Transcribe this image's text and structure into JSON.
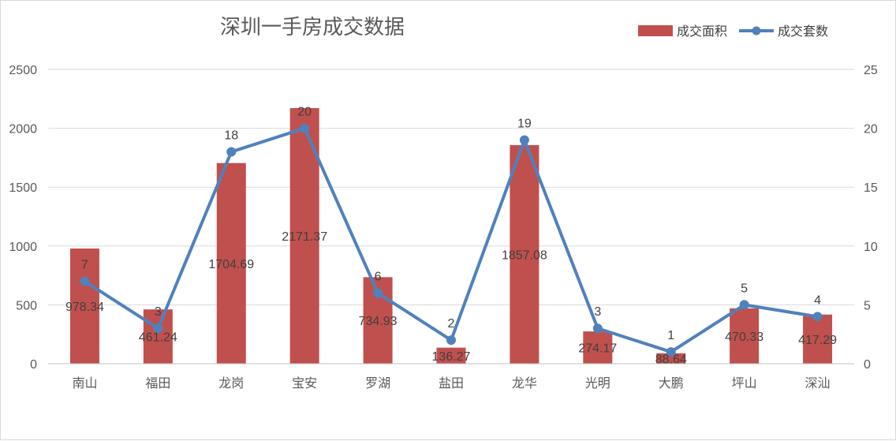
{
  "chart_data": {
    "type": "bar",
    "title": "深圳一手房成交数据",
    "categories": [
      "南山",
      "福田",
      "龙岗",
      "宝安",
      "罗湖",
      "盐田",
      "龙华",
      "光明",
      "大鹏",
      "坪山",
      "深汕"
    ],
    "series": [
      {
        "name": "成交面积",
        "type": "bar",
        "axis": "left",
        "color": "#c0504d",
        "values": [
          978.34,
          461.24,
          1704.69,
          2171.37,
          734.93,
          136.27,
          1857.08,
          274.17,
          88.64,
          470.33,
          417.29
        ]
      },
      {
        "name": "成交套数",
        "type": "line",
        "axis": "right",
        "color": "#4f81bd",
        "values": [
          7,
          3,
          18,
          20,
          6,
          2,
          19,
          3,
          1,
          5,
          4
        ]
      }
    ],
    "ylim": [
      0,
      2500
    ],
    "yticks": [
      0,
      500,
      1000,
      1500,
      2000,
      2500
    ],
    "y2lim": [
      0,
      25
    ],
    "y2ticks": [
      0,
      5,
      10,
      15,
      20,
      25
    ],
    "grid": true,
    "legend_position": "top-right"
  }
}
